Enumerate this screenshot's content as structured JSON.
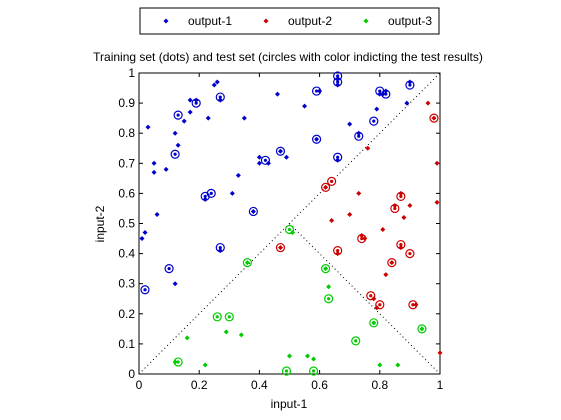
{
  "chart_data": {
    "type": "scatter",
    "title": "Training set (dots) and test set (circles with color indicting the test results)",
    "xlabel": "input-1",
    "ylabel": "input-2",
    "xlim": [
      0,
      1
    ],
    "ylim": [
      0,
      1
    ],
    "xticks": [
      "0",
      "0.2",
      "0.4",
      "0.6",
      "0.8",
      "1"
    ],
    "yticks": [
      "0",
      "0.1",
      "0.2",
      "0.3",
      "0.4",
      "0.5",
      "0.6",
      "0.7",
      "0.8",
      "0.9",
      "1"
    ],
    "grid": false,
    "legend": {
      "placement": "top",
      "orientation": "horizontal"
    },
    "series": [
      {
        "name": "output-1",
        "color": "#0000cc",
        "training": [
          [
            0.01,
            0.45
          ],
          [
            0.02,
            0.47
          ],
          [
            0.03,
            0.82
          ],
          [
            0.05,
            0.7
          ],
          [
            0.05,
            0.67
          ],
          [
            0.06,
            0.53
          ],
          [
            0.09,
            0.68
          ],
          [
            0.12,
            0.3
          ],
          [
            0.12,
            0.8
          ],
          [
            0.13,
            0.76
          ],
          [
            0.15,
            0.84
          ],
          [
            0.17,
            0.91
          ],
          [
            0.17,
            0.87
          ],
          [
            0.19,
            0.91
          ],
          [
            0.22,
            0.58
          ],
          [
            0.23,
            0.85
          ],
          [
            0.25,
            0.96
          ],
          [
            0.26,
            0.97
          ],
          [
            0.27,
            0.91
          ],
          [
            0.27,
            0.41
          ],
          [
            0.31,
            0.6
          ],
          [
            0.33,
            0.66
          ],
          [
            0.35,
            0.85
          ],
          [
            0.38,
            0.54
          ],
          [
            0.4,
            0.7
          ],
          [
            0.4,
            0.72
          ],
          [
            0.43,
            0.7
          ],
          [
            0.46,
            0.93
          ],
          [
            0.47,
            0.74
          ],
          [
            0.49,
            0.72
          ],
          [
            0.55,
            0.89
          ],
          [
            0.59,
            0.78
          ],
          [
            0.6,
            0.94
          ],
          [
            0.66,
            0.98
          ],
          [
            0.66,
            0.96
          ],
          [
            0.66,
            0.71
          ],
          [
            0.7,
            0.83
          ],
          [
            0.73,
            0.8
          ],
          [
            0.79,
            0.88
          ],
          [
            0.8,
            0.93
          ],
          [
            0.81,
            0.93
          ],
          [
            0.82,
            0.94
          ],
          [
            0.89,
            0.9
          ],
          [
            0.9,
            0.97
          ]
        ],
        "test": [
          [
            0.02,
            0.28
          ],
          [
            0.1,
            0.35
          ],
          [
            0.13,
            0.86
          ],
          [
            0.12,
            0.73
          ],
          [
            0.19,
            0.9
          ],
          [
            0.22,
            0.59
          ],
          [
            0.24,
            0.6
          ],
          [
            0.27,
            0.92
          ],
          [
            0.27,
            0.42
          ],
          [
            0.38,
            0.54
          ],
          [
            0.42,
            0.71
          ],
          [
            0.47,
            0.74
          ],
          [
            0.59,
            0.78
          ],
          [
            0.59,
            0.94
          ],
          [
            0.66,
            0.99
          ],
          [
            0.66,
            0.97
          ],
          [
            0.66,
            0.72
          ],
          [
            0.73,
            0.79
          ],
          [
            0.78,
            0.84
          ],
          [
            0.8,
            0.94
          ],
          [
            0.82,
            0.93
          ],
          [
            0.9,
            0.96
          ]
        ]
      },
      {
        "name": "output-2",
        "color": "#cc0000",
        "training": [
          [
            0.47,
            0.42
          ],
          [
            0.62,
            0.62
          ],
          [
            0.64,
            0.51
          ],
          [
            0.66,
            0.4
          ],
          [
            0.7,
            0.53
          ],
          [
            0.73,
            0.6
          ],
          [
            0.74,
            0.46
          ],
          [
            0.75,
            0.45
          ],
          [
            0.76,
            0.75
          ],
          [
            0.78,
            0.25
          ],
          [
            0.79,
            0.22
          ],
          [
            0.81,
            0.48
          ],
          [
            0.82,
            0.33
          ],
          [
            0.84,
            0.37
          ],
          [
            0.85,
            0.56
          ],
          [
            0.87,
            0.6
          ],
          [
            0.87,
            0.42
          ],
          [
            0.88,
            0.52
          ],
          [
            0.9,
            0.56
          ],
          [
            0.92,
            0.23
          ],
          [
            0.96,
            0.9
          ],
          [
            0.98,
            0.85
          ],
          [
            0.99,
            0.7
          ],
          [
            0.99,
            0.57
          ],
          [
            1.0,
            0.07
          ]
        ],
        "test": [
          [
            0.47,
            0.42
          ],
          [
            0.62,
            0.62
          ],
          [
            0.64,
            0.64
          ],
          [
            0.66,
            0.41
          ],
          [
            0.74,
            0.45
          ],
          [
            0.77,
            0.26
          ],
          [
            0.8,
            0.23
          ],
          [
            0.84,
            0.37
          ],
          [
            0.85,
            0.55
          ],
          [
            0.87,
            0.59
          ],
          [
            0.87,
            0.43
          ],
          [
            0.9,
            0.4
          ],
          [
            0.91,
            0.23
          ],
          [
            0.98,
            0.85
          ]
        ]
      },
      {
        "name": "output-3",
        "color": "#00cc00",
        "training": [
          [
            0.12,
            0.04
          ],
          [
            0.16,
            0.12
          ],
          [
            0.22,
            0.03
          ],
          [
            0.29,
            0.14
          ],
          [
            0.34,
            0.13
          ],
          [
            0.36,
            0.37
          ],
          [
            0.5,
            0.06
          ],
          [
            0.51,
            0.47
          ],
          [
            0.56,
            0.06
          ],
          [
            0.58,
            0.05
          ],
          [
            0.62,
            0.35
          ],
          [
            0.63,
            0.29
          ],
          [
            0.78,
            0.17
          ],
          [
            0.8,
            0.03
          ],
          [
            0.86,
            0.03
          ],
          [
            0.94,
            0.15
          ]
        ],
        "test": [
          [
            0.13,
            0.04
          ],
          [
            0.26,
            0.19
          ],
          [
            0.3,
            0.19
          ],
          [
            0.36,
            0.37
          ],
          [
            0.49,
            0.01
          ],
          [
            0.5,
            0.48
          ],
          [
            0.58,
            0.01
          ],
          [
            0.62,
            0.35
          ],
          [
            0.63,
            0.25
          ],
          [
            0.72,
            0.11
          ],
          [
            0.78,
            0.17
          ],
          [
            0.94,
            0.15
          ]
        ]
      }
    ],
    "annotations": [
      {
        "type": "dotted-line",
        "from": [
          0,
          0
        ],
        "to": [
          1,
          1
        ]
      },
      {
        "type": "dotted-line",
        "from": [
          0.5,
          0.5
        ],
        "to": [
          1,
          0
        ]
      }
    ]
  }
}
